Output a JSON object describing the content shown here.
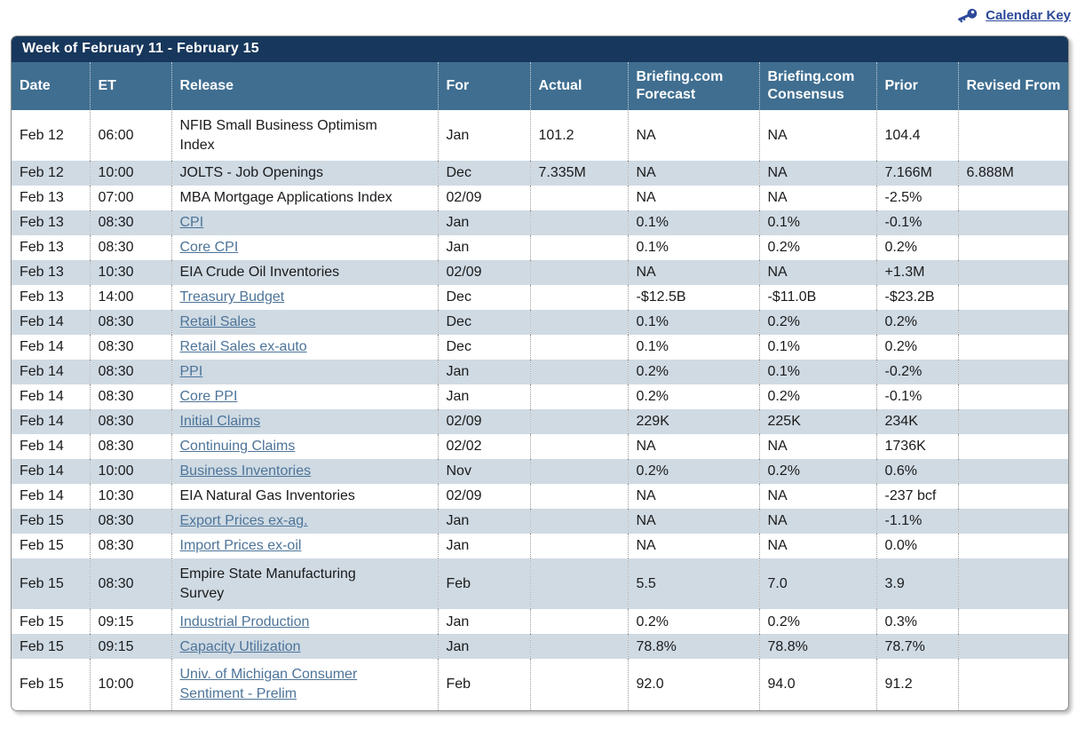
{
  "calendar_key": {
    "label": "Calendar Key"
  },
  "title": "Week of February 11 - February 15",
  "columns": [
    "Date",
    "ET",
    "Release",
    "For",
    "Actual",
    "Briefing.com Forecast",
    "Briefing.com Consensus",
    "Prior",
    "Revised From"
  ],
  "colors": {
    "title_bar": "#17375c",
    "header_bar": "#3f6e90",
    "row_shaded": "#cfdae3",
    "release_link": "#4d7499",
    "calendar_key_link": "#2d4a9a"
  },
  "rows": [
    {
      "date": "Feb 12",
      "et": "06:00",
      "release": "NFIB Small Business Optimism Index",
      "is_link": false,
      "for": "Jan",
      "actual": "101.2",
      "briefing_forecast": "NA",
      "briefing_consensus": "NA",
      "prior": "104.4",
      "revised_from": ""
    },
    {
      "date": "Feb 12",
      "et": "10:00",
      "release": "JOLTS - Job Openings",
      "is_link": false,
      "for": "Dec",
      "actual": "7.335M",
      "briefing_forecast": "NA",
      "briefing_consensus": "NA",
      "prior": "7.166M",
      "revised_from": "6.888M"
    },
    {
      "date": "Feb 13",
      "et": "07:00",
      "release": "MBA Mortgage Applications Index",
      "is_link": false,
      "for": "02/09",
      "actual": "",
      "briefing_forecast": "NA",
      "briefing_consensus": "NA",
      "prior": "-2.5%",
      "revised_from": ""
    },
    {
      "date": "Feb 13",
      "et": "08:30",
      "release": "CPI",
      "is_link": true,
      "for": "Jan",
      "actual": "",
      "briefing_forecast": "0.1%",
      "briefing_consensus": "0.1%",
      "prior": "-0.1%",
      "revised_from": ""
    },
    {
      "date": "Feb 13",
      "et": "08:30",
      "release": "Core CPI",
      "is_link": true,
      "for": "Jan",
      "actual": "",
      "briefing_forecast": "0.1%",
      "briefing_consensus": "0.2%",
      "prior": "0.2%",
      "revised_from": ""
    },
    {
      "date": "Feb 13",
      "et": "10:30",
      "release": "EIA Crude Oil Inventories",
      "is_link": false,
      "for": "02/09",
      "actual": "",
      "briefing_forecast": "NA",
      "briefing_consensus": "NA",
      "prior": "+1.3M",
      "revised_from": ""
    },
    {
      "date": "Feb 13",
      "et": "14:00",
      "release": "Treasury Budget",
      "is_link": true,
      "for": "Dec",
      "actual": "",
      "briefing_forecast": "-$12.5B",
      "briefing_consensus": "-$11.0B",
      "prior": "-$23.2B",
      "revised_from": ""
    },
    {
      "date": "Feb 14",
      "et": "08:30",
      "release": "Retail Sales",
      "is_link": true,
      "for": "Dec",
      "actual": "",
      "briefing_forecast": "0.1%",
      "briefing_consensus": "0.2%",
      "prior": "0.2%",
      "revised_from": ""
    },
    {
      "date": "Feb 14",
      "et": "08:30",
      "release": "Retail Sales ex-auto",
      "is_link": true,
      "for": "Dec",
      "actual": "",
      "briefing_forecast": "0.1%",
      "briefing_consensus": "0.1%",
      "prior": "0.2%",
      "revised_from": ""
    },
    {
      "date": "Feb 14",
      "et": "08:30",
      "release": "PPI",
      "is_link": true,
      "for": "Jan",
      "actual": "",
      "briefing_forecast": "0.2%",
      "briefing_consensus": "0.1%",
      "prior": "-0.2%",
      "revised_from": ""
    },
    {
      "date": "Feb 14",
      "et": "08:30",
      "release": "Core PPI",
      "is_link": true,
      "for": "Jan",
      "actual": "",
      "briefing_forecast": "0.2%",
      "briefing_consensus": "0.2%",
      "prior": "-0.1%",
      "revised_from": ""
    },
    {
      "date": "Feb 14",
      "et": "08:30",
      "release": "Initial Claims",
      "is_link": true,
      "for": "02/09",
      "actual": "",
      "briefing_forecast": "229K",
      "briefing_consensus": "225K",
      "prior": "234K",
      "revised_from": ""
    },
    {
      "date": "Feb 14",
      "et": "08:30",
      "release": "Continuing Claims",
      "is_link": true,
      "for": "02/02",
      "actual": "",
      "briefing_forecast": "NA",
      "briefing_consensus": "NA",
      "prior": "1736K",
      "revised_from": ""
    },
    {
      "date": "Feb 14",
      "et": "10:00",
      "release": "Business Inventories",
      "is_link": true,
      "for": "Nov",
      "actual": "",
      "briefing_forecast": "0.2%",
      "briefing_consensus": "0.2%",
      "prior": "0.6%",
      "revised_from": ""
    },
    {
      "date": "Feb 14",
      "et": "10:30",
      "release": "EIA Natural Gas Inventories",
      "is_link": false,
      "for": "02/09",
      "actual": "",
      "briefing_forecast": "NA",
      "briefing_consensus": "NA",
      "prior": "-237 bcf",
      "revised_from": ""
    },
    {
      "date": "Feb 15",
      "et": "08:30",
      "release": "Export Prices ex-ag.",
      "is_link": true,
      "for": "Jan",
      "actual": "",
      "briefing_forecast": "NA",
      "briefing_consensus": "NA",
      "prior": "-1.1%",
      "revised_from": ""
    },
    {
      "date": "Feb 15",
      "et": "08:30",
      "release": "Import Prices ex-oil",
      "is_link": true,
      "for": "Jan",
      "actual": "",
      "briefing_forecast": "NA",
      "briefing_consensus": "NA",
      "prior": "0.0%",
      "revised_from": ""
    },
    {
      "date": "Feb 15",
      "et": "08:30",
      "release": "Empire State Manufacturing Survey",
      "is_link": false,
      "for": "Feb",
      "actual": "",
      "briefing_forecast": "5.5",
      "briefing_consensus": "7.0",
      "prior": "3.9",
      "revised_from": ""
    },
    {
      "date": "Feb 15",
      "et": "09:15",
      "release": "Industrial Production",
      "is_link": true,
      "for": "Jan",
      "actual": "",
      "briefing_forecast": "0.2%",
      "briefing_consensus": "0.2%",
      "prior": "0.3%",
      "revised_from": ""
    },
    {
      "date": "Feb 15",
      "et": "09:15",
      "release": "Capacity Utilization",
      "is_link": true,
      "for": "Jan",
      "actual": "",
      "briefing_forecast": "78.8%",
      "briefing_consensus": "78.8%",
      "prior": "78.7%",
      "revised_from": ""
    },
    {
      "date": "Feb 15",
      "et": "10:00",
      "release": "Univ. of Michigan Consumer Sentiment - Prelim",
      "is_link": true,
      "for": "Feb",
      "actual": "",
      "briefing_forecast": "92.0",
      "briefing_consensus": "94.0",
      "prior": "91.2",
      "revised_from": ""
    }
  ]
}
